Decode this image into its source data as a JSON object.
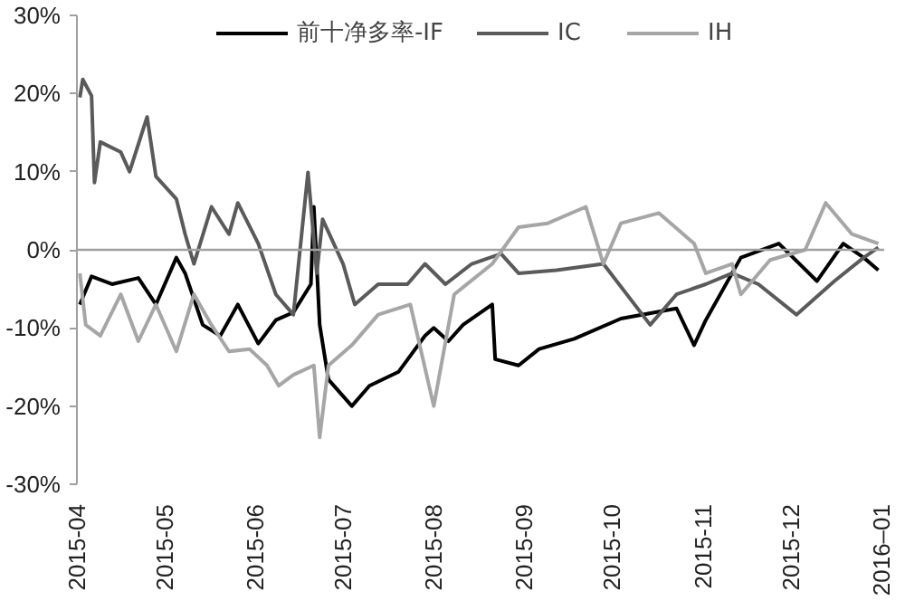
{
  "chart_data": {
    "type": "line",
    "series": [
      {
        "name": "前十净多率-IF",
        "color": "#000000",
        "x": [
          "2015-04-02",
          "2015-04-06",
          "2015-04-13",
          "2015-04-22",
          "2015-04-28",
          "2015-05-05",
          "2015-05-08",
          "2015-05-14",
          "2015-05-20",
          "2015-05-26",
          "2015-06-02",
          "2015-06-08",
          "2015-06-14",
          "2015-06-20",
          "2015-06-21",
          "2015-06-23",
          "2015-06-26",
          "2015-07-04",
          "2015-07-10",
          "2015-07-20",
          "2015-07-29",
          "2015-08-01",
          "2015-08-06",
          "2015-08-11",
          "2015-08-21",
          "2015-08-22",
          "2015-08-30",
          "2015-09-06",
          "2015-09-18",
          "2015-10-04",
          "2015-10-23",
          "2015-10-29",
          "2015-11-02",
          "2015-11-14",
          "2015-11-27",
          "2015-12-10",
          "2015-12-19",
          "2015-12-26",
          "2015-12-31"
        ],
        "values": [
          -7,
          -3.4,
          -4.4,
          -3.6,
          -7,
          -1,
          -3,
          -9.6,
          -11,
          -7,
          -12,
          -9,
          -8,
          -4.4,
          5.5,
          -9.6,
          -16.6,
          -20,
          -17.4,
          -15.6,
          -11,
          -10,
          -11.7,
          -9.6,
          -7,
          -14,
          -14.8,
          -12.7,
          -11.4,
          -8.8,
          -7.5,
          -12.2,
          -9,
          -1,
          0.8,
          -4,
          0.8,
          -1,
          -2.6
        ]
      },
      {
        "name": "IC",
        "color": "#5a5a5a",
        "x": [
          "2015-04-02",
          "2015-04-03",
          "2015-04-06",
          "2015-04-07",
          "2015-04-09",
          "2015-04-16",
          "2015-04-19",
          "2015-04-25",
          "2015-04-28",
          "2015-05-05",
          "2015-05-08",
          "2015-05-11",
          "2015-05-17",
          "2015-05-23",
          "2015-05-26",
          "2015-06-02",
          "2015-06-08",
          "2015-06-14",
          "2015-06-19",
          "2015-06-22",
          "2015-06-24",
          "2015-07-01",
          "2015-07-05",
          "2015-07-13",
          "2015-07-23",
          "2015-07-29",
          "2015-08-05",
          "2015-08-14",
          "2015-08-24",
          "2015-08-30",
          "2015-09-12",
          "2015-09-28",
          "2015-10-14",
          "2015-10-23",
          "2015-11-02",
          "2015-11-11",
          "2015-11-20",
          "2015-12-03",
          "2015-12-16",
          "2015-12-26",
          "2015-12-31"
        ],
        "values": [
          19.5,
          21.8,
          19.7,
          8.6,
          13.8,
          12.5,
          10,
          17,
          9.4,
          6.5,
          2,
          -1.8,
          5.5,
          2,
          6,
          0.8,
          -5.7,
          -8.3,
          9.9,
          -3,
          3.9,
          -1.8,
          -7,
          -4.4,
          -4.4,
          -1.8,
          -4.4,
          -1.8,
          -0.5,
          -3,
          -2.6,
          -1.8,
          -9.6,
          -5.7,
          -4.4,
          -3,
          -4.4,
          -8.3,
          -4,
          -1,
          0.3
        ]
      },
      {
        "name": "IH",
        "color": "#a6a6a6",
        "x": [
          "2015-04-02",
          "2015-04-04",
          "2015-04-09",
          "2015-04-16",
          "2015-04-22",
          "2015-04-28",
          "2015-05-05",
          "2015-05-11",
          "2015-05-17",
          "2015-05-23",
          "2015-05-30",
          "2015-06-05",
          "2015-06-09",
          "2015-06-14",
          "2015-06-21",
          "2015-06-23",
          "2015-06-26",
          "2015-07-04",
          "2015-07-13",
          "2015-07-24",
          "2015-08-01",
          "2015-08-08",
          "2015-08-21",
          "2015-08-30",
          "2015-09-09",
          "2015-09-22",
          "2015-09-28",
          "2015-10-04",
          "2015-10-17",
          "2015-10-29",
          "2015-11-02",
          "2015-11-11",
          "2015-11-14",
          "2015-11-24",
          "2015-12-06",
          "2015-12-13",
          "2015-12-22",
          "2015-12-31"
        ],
        "values": [
          -3,
          -9.6,
          -11,
          -5.7,
          -11.7,
          -7,
          -13,
          -5.7,
          -9.6,
          -13,
          -12.7,
          -14.8,
          -17.4,
          -16,
          -14.8,
          -24,
          -14.8,
          -12.2,
          -8.3,
          -7,
          -20,
          -5.7,
          -1.8,
          2.9,
          3.4,
          5.5,
          -1.8,
          3.4,
          4.7,
          0.8,
          -3,
          -1.8,
          -5.7,
          -1.3,
          0,
          6,
          2,
          0.8
        ]
      }
    ],
    "xlim": [
      "2015-04-01",
      "2016-01-02"
    ],
    "xticks": [
      "2015-04",
      "2015-05",
      "2015-06",
      "2015-07",
      "2015-08",
      "2015-09",
      "2015-10",
      "2015-11",
      "2015-12",
      {
        "value": "2016-01",
        "label": "2016–01"
      }
    ],
    "ylim": [
      -30,
      30
    ],
    "yticks": [
      {
        "value": -30,
        "label": "-30%"
      },
      {
        "value": -20,
        "label": "-20%"
      },
      {
        "value": -10,
        "label": "-10%"
      },
      {
        "value": 0,
        "label": "0%"
      },
      {
        "value": 10,
        "label": "10%"
      },
      {
        "value": 20,
        "label": "20%"
      },
      {
        "value": 30,
        "label": "30%"
      }
    ],
    "ref_lines": [
      {
        "axis": "y",
        "value": 0,
        "color": "#a0a0a0"
      }
    ],
    "legend": "top",
    "grid": false
  }
}
